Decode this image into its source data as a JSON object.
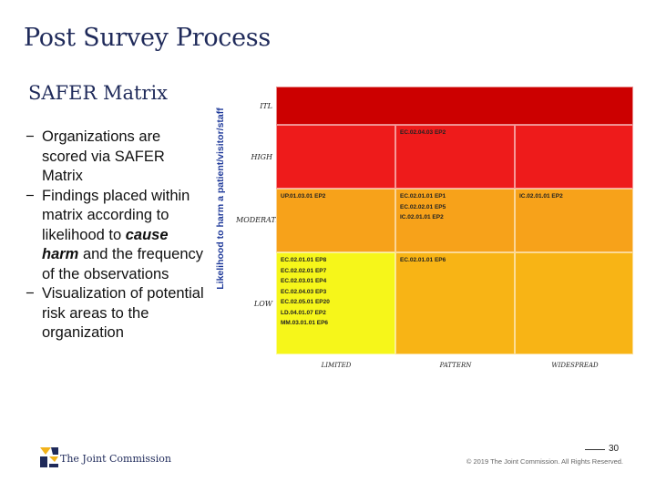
{
  "slide": {
    "title": "Post Survey Process",
    "subtitle": "SAFER Matrix",
    "bullets": [
      {
        "pre": "Organizations are scored via SAFER Matrix",
        "em": "",
        "post": ""
      },
      {
        "pre": "Findings placed within matrix according to likelihood to ",
        "em": "cause harm",
        "post": " and the frequency of the observations"
      },
      {
        "pre": "Visualization of potential risk areas to the organization",
        "em": "",
        "post": ""
      }
    ],
    "bullet_marker": "−",
    "page_number": "30",
    "copyright": "© 2019 The Joint Commission. All Rights Reserved.",
    "logo_text": "The Joint Commission"
  },
  "matrix": {
    "axis_label": "Likelihood to harm a patient/visitor/staff",
    "rows": [
      "ITL",
      "HIGH",
      "MODERATE",
      "LOW"
    ],
    "columns": [
      "LIMITED",
      "PATTERN",
      "WIDESPREAD"
    ],
    "colors": {
      "itl": "#cc0000",
      "high": "#ee1b1b",
      "moderate": "#f7a21a",
      "low_limited": "#f6f61a",
      "low_other": "#f8b415"
    },
    "cells": {
      "high_pattern": [
        "EC.02.04.03 EP2"
      ],
      "moderate_limited": [
        "UP.01.03.01 EP2"
      ],
      "moderate_pattern": [
        "EC.02.01.01 EP1",
        "EC.02.02.01 EP5",
        "IC.02.01.01 EP2"
      ],
      "moderate_widespread": [
        "IC.02.01.01 EP2"
      ],
      "low_limited": [
        "EC.02.01.01 EP8",
        "EC.02.02.01 EP7",
        "EC.02.03.01 EP4",
        "EC.02.04.03 EP3",
        "EC.02.05.01 EP20",
        "LD.04.01.07 EP2",
        "MM.03.01.01 EP6"
      ],
      "low_pattern": [
        "EC.02.01.01 EP6"
      ]
    }
  }
}
